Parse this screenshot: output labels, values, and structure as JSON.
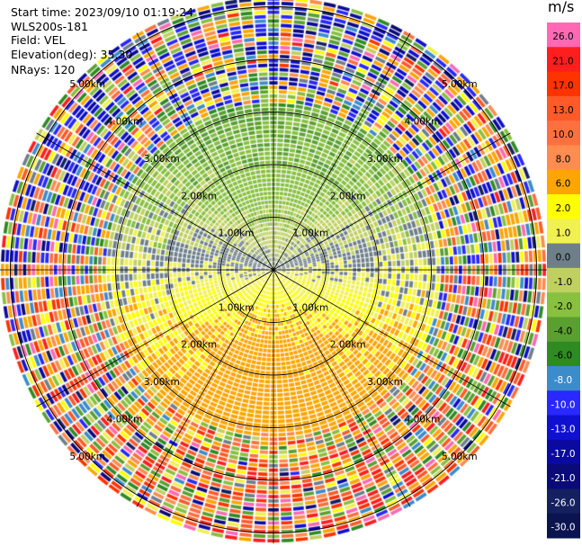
{
  "header": {
    "start_time": "Start time: 2023/09/10 01:19:24",
    "instrument": "WLS200s-181",
    "field": "Field: VEL",
    "elevation": "Elevation(deg): 35.30",
    "nrays": "NRays: 120"
  },
  "chart_data": {
    "type": "heatmap",
    "projection": "polar-ppi",
    "field": "VEL",
    "unit": "m/s",
    "n_rays": 120,
    "elevation_deg": 35.3,
    "range_rings_km": [
      1.0,
      2.0,
      3.0,
      4.0,
      5.0
    ],
    "ring_labels": [
      "1.00km",
      "2.00km",
      "3.00km",
      "4.00km",
      "5.00km"
    ],
    "max_range_km": 5.2,
    "colorbar": {
      "label": "m/s",
      "bounds": [
        26.0,
        21.0,
        17.0,
        13.0,
        10.0,
        8.0,
        6.0,
        2.0,
        1.0,
        0.0,
        -1.0,
        -2.0,
        -4.0,
        -6.0,
        -8.0,
        -10.0,
        -13.0,
        -17.0,
        -21.0,
        -26.0,
        -30.0
      ],
      "tick_labels": [
        "26.0",
        "21.0",
        "17.0",
        "13.0",
        "10.0",
        "8.0",
        "6.0",
        "2.0",
        "1.0",
        "0.0",
        "-1.0",
        "-2.0",
        "-4.0",
        "-6.0",
        "-8.0",
        "-10.0",
        "-13.0",
        "-17.0",
        "-21.0",
        "-26.0",
        "-30.0"
      ],
      "colors": [
        "#ff69b4",
        "#ff1e1e",
        "#ff3300",
        "#ff5a28",
        "#ff7040",
        "#ff8c50",
        "#ffa500",
        "#ffff00",
        "#f0f050",
        "#6e7f8a",
        "#c0d060",
        "#88c040",
        "#5aa030",
        "#2e8b22",
        "#3c8ccc",
        "#2828ff",
        "#1010d0",
        "#0a0aa0",
        "#0a0a78",
        "#142060",
        "#0a1450"
      ]
    }
  }
}
